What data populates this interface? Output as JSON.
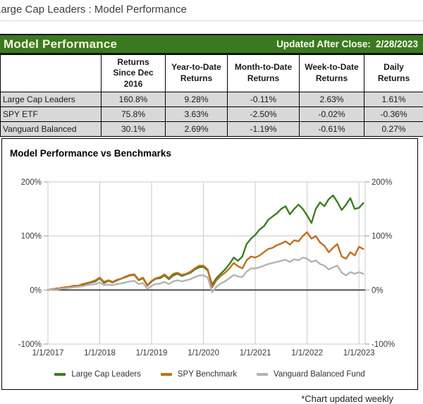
{
  "breadcrumb": {
    "text": "Large Cap Leaders : Model Performance"
  },
  "header": {
    "title": "Model Performance",
    "updated_label": "Updated After Close:",
    "updated_date": "2/28/2023"
  },
  "colors": {
    "header_green": "#3a7a1f",
    "table_row_bg": "#d9d9d9",
    "grid_gray": "#c9c9c9",
    "zero_axis": "#1a1a1a"
  },
  "table": {
    "columns": [
      "",
      "Returns\nSince Dec\n2016",
      "Year-to-Date\nReturns",
      "Month-to-Date\nReturns",
      "Week-to-Date\nReturns",
      "Daily\nReturns"
    ],
    "rows": [
      {
        "label": "Large Cap Leaders",
        "values": [
          "160.8%",
          "9.28%",
          "-0.11%",
          "2.63%",
          "1.61%"
        ]
      },
      {
        "label": "SPY ETF",
        "values": [
          "75.8%",
          "3.63%",
          "-2.50%",
          "-0.02%",
          "-0.36%"
        ]
      },
      {
        "label": "Vanguard Balanced",
        "values": [
          "30.1%",
          "2.69%",
          "-1.19%",
          "-0.61%",
          "0.27%"
        ]
      }
    ]
  },
  "chart_data": {
    "type": "line",
    "title": "Model Performance vs Benchmarks",
    "xlabel": "",
    "ylabel": "",
    "x_domain": [
      2017.0,
      2023.12
    ],
    "y_domain": [
      -100,
      200
    ],
    "grid": true,
    "legend_position": "bottom",
    "x_ticks": [
      {
        "v": 2017,
        "label": "1/1/2017"
      },
      {
        "v": 2018,
        "label": "1/1/2018"
      },
      {
        "v": 2019,
        "label": "1/1/2019"
      },
      {
        "v": 2020,
        "label": "1/1/2020"
      },
      {
        "v": 2021,
        "label": "1/1/2021"
      },
      {
        "v": 2022,
        "label": "1/1/2022"
      },
      {
        "v": 2023,
        "label": "1/1/2023"
      }
    ],
    "y_ticks": [
      {
        "v": 200,
        "label": "200%"
      },
      {
        "v": 100,
        "label": "100%"
      },
      {
        "v": 0,
        "label": "0%"
      },
      {
        "v": -100,
        "label": "-100%"
      }
    ],
    "x": [
      2017.0,
      2017.083,
      2017.167,
      2017.25,
      2017.333,
      2017.417,
      2017.5,
      2017.583,
      2017.667,
      2017.75,
      2017.833,
      2017.917,
      2018.0,
      2018.083,
      2018.167,
      2018.25,
      2018.333,
      2018.417,
      2018.5,
      2018.583,
      2018.667,
      2018.75,
      2018.833,
      2018.917,
      2019.0,
      2019.083,
      2019.167,
      2019.25,
      2019.333,
      2019.417,
      2019.5,
      2019.583,
      2019.667,
      2019.75,
      2019.833,
      2019.917,
      2020.0,
      2020.083,
      2020.167,
      2020.25,
      2020.333,
      2020.417,
      2020.5,
      2020.583,
      2020.667,
      2020.75,
      2020.833,
      2020.917,
      2021.0,
      2021.083,
      2021.167,
      2021.25,
      2021.333,
      2021.417,
      2021.5,
      2021.583,
      2021.667,
      2021.75,
      2021.833,
      2021.917,
      2022.0,
      2022.083,
      2022.167,
      2022.25,
      2022.333,
      2022.417,
      2022.5,
      2022.583,
      2022.667,
      2022.75,
      2022.833,
      2022.917,
      2023.0,
      2023.083
    ],
    "series": [
      {
        "name": "Large Cap Leaders",
        "color": "#3e7d22",
        "values": [
          0,
          1,
          3,
          2,
          5,
          4,
          7,
          6,
          9,
          12,
          14,
          16,
          22,
          13,
          17,
          14,
          18,
          21,
          24,
          27,
          28,
          18,
          22,
          8,
          16,
          21,
          22,
          27,
          20,
          27,
          30,
          26,
          29,
          32,
          38,
          42,
          43,
          36,
          10,
          22,
          30,
          38,
          48,
          60,
          54,
          62,
          85,
          95,
          102,
          112,
          118,
          130,
          136,
          142,
          150,
          155,
          140,
          150,
          158,
          150,
          138,
          124,
          150,
          162,
          155,
          168,
          175,
          163,
          148,
          158,
          170,
          150,
          152,
          160.8
        ]
      },
      {
        "name": "SPY Benchmark",
        "color": "#c0701f",
        "values": [
          0,
          2,
          2,
          4,
          5,
          6,
          8,
          8,
          11,
          13,
          15,
          18,
          23,
          15,
          18,
          15,
          19,
          21,
          25,
          28,
          29,
          19,
          23,
          9,
          17,
          22,
          24,
          29,
          22,
          30,
          32,
          28,
          30,
          34,
          40,
          45,
          45,
          38,
          5,
          18,
          26,
          32,
          40,
          50,
          44,
          40,
          55,
          62,
          60,
          64,
          70,
          76,
          78,
          83,
          86,
          90,
          84,
          92,
          90,
          100,
          107,
          95,
          100,
          88,
          82,
          70,
          78,
          85,
          62,
          58,
          70,
          64,
          80,
          75.8
        ]
      },
      {
        "name": "Vanguard Balanced Fund",
        "color": "#b3b3b3",
        "values": [
          0,
          1,
          1,
          2,
          3,
          4,
          5,
          6,
          7,
          9,
          10,
          11,
          14,
          9,
          10,
          9,
          11,
          12,
          14,
          16,
          17,
          11,
          13,
          2,
          8,
          11,
          12,
          15,
          11,
          16,
          18,
          16,
          18,
          20,
          24,
          27,
          27,
          23,
          -4,
          6,
          12,
          16,
          22,
          28,
          25,
          24,
          34,
          40,
          40,
          42,
          45,
          48,
          50,
          52,
          54,
          56,
          52,
          57,
          55,
          60,
          58,
          52,
          55,
          48,
          45,
          38,
          42,
          45,
          32,
          27,
          33,
          30,
          33,
          30.1
        ]
      }
    ]
  },
  "footnote": "*Chart updated weekly"
}
